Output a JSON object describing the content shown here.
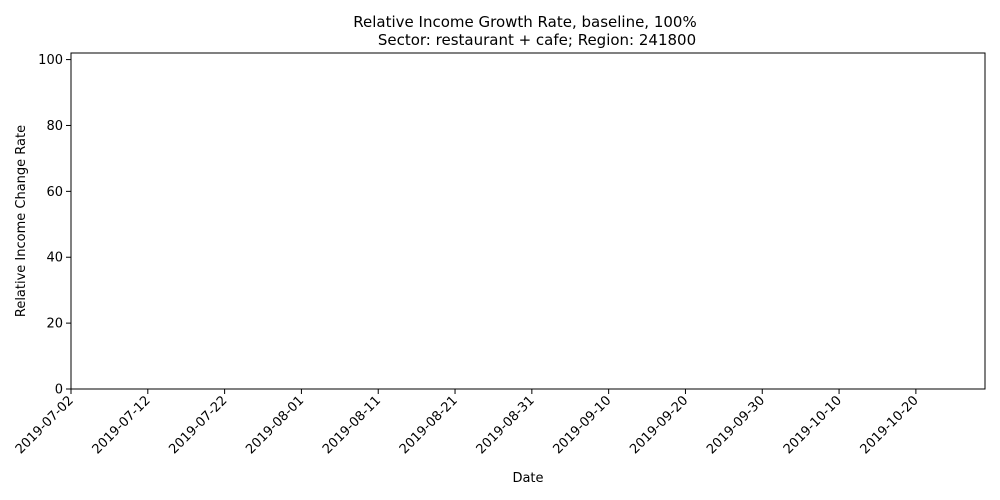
{
  "chart_data": {
    "type": "line",
    "title_line1": "Relative Income Growth Rate, baseline, 100%",
    "title_line2": "Sector: restaurant + cafe; Region: 241800",
    "xlabel": "Date",
    "ylabel": "Relative Income Change Rate",
    "x_ticks": [
      "2019-07-02",
      "2019-07-12",
      "2019-07-22",
      "2019-08-01",
      "2019-08-11",
      "2019-08-21",
      "2019-08-31",
      "2019-09-10",
      "2019-09-20",
      "2019-09-30",
      "2019-10-10",
      "2019-10-20"
    ],
    "y_ticks": [
      "0",
      "20",
      "40",
      "60",
      "80",
      "100"
    ],
    "xlim": [
      "2019-07-02",
      "2019-10-29"
    ],
    "ylim": [
      0,
      102
    ],
    "grid": false,
    "series": []
  }
}
